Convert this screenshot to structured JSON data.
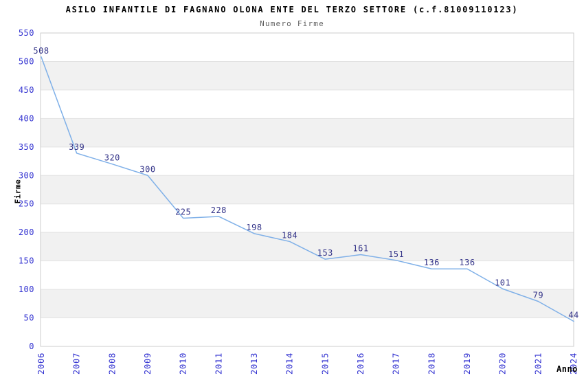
{
  "chart_data": {
    "type": "line",
    "title": "ASILO INFANTILE DI FAGNANO OLONA ENTE DEL TERZO SETTORE (c.f.81009110123)",
    "subtitle": "Numero Firme",
    "xlabel": "Anno",
    "ylabel": "Firme",
    "categories": [
      "2006",
      "2007",
      "2008",
      "2009",
      "2010",
      "2011",
      "2013",
      "2014",
      "2015",
      "2016",
      "2017",
      "2018",
      "2019",
      "2020",
      "2021",
      "2024"
    ],
    "values": [
      508,
      339,
      320,
      300,
      225,
      228,
      198,
      184,
      153,
      161,
      151,
      136,
      136,
      101,
      79,
      44
    ],
    "ylim": [
      0,
      550
    ],
    "ytick_step": 50,
    "yticks": [
      0,
      50,
      100,
      150,
      200,
      250,
      300,
      350,
      400,
      450,
      500,
      550
    ],
    "grid": true,
    "legend": "none",
    "point_markers": false,
    "background_bands": [
      "#ffffff",
      "#f1f1f1"
    ],
    "colors": {
      "line": "#7fb0e8",
      "data_labels": "#333388",
      "axis_tick_labels": "#3030d0",
      "axis_titles": "#000000",
      "title": "#000000",
      "subtitle": "#606060",
      "gridline": "#e2e2e2",
      "plot_border": "#cccccc",
      "background": "#ffffff"
    }
  }
}
